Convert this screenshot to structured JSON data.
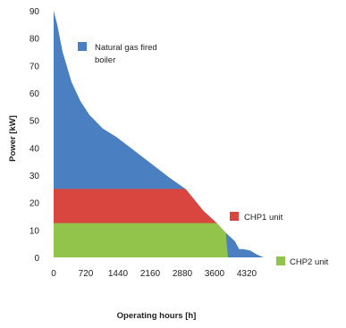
{
  "chart_data": {
    "type": "area",
    "xlabel": "Operating hours [h]",
    "ylabel": "Power [kW]",
    "xlim": [
      0,
      4800
    ],
    "ylim": [
      0,
      90
    ],
    "x_ticks": [
      "0",
      "720",
      "1440",
      "2160",
      "2880",
      "3600",
      "4320"
    ],
    "x_tick_values": [
      0,
      720,
      1440,
      2160,
      2880,
      3600,
      4320
    ],
    "y_ticks": [
      "0",
      "10",
      "20",
      "30",
      "40",
      "50",
      "60",
      "70",
      "80",
      "90"
    ],
    "y_tick_values": [
      0,
      10,
      20,
      30,
      40,
      50,
      60,
      70,
      80,
      90
    ],
    "grid": false,
    "series": [
      {
        "name": "CHP2 unit",
        "color": "#92c44c",
        "x": [
          0,
          3650,
          3850,
          3900,
          3950
        ],
        "y": [
          12.5,
          12.5,
          9,
          0,
          0
        ]
      },
      {
        "name": "CHP1 unit",
        "color": "#d9453f",
        "x": [
          0,
          2950,
          3100,
          3350,
          3650
        ],
        "y": [
          25,
          25,
          22,
          17,
          12.5
        ]
      },
      {
        "name": "Natural gas fired boiler",
        "color": "#4a7fc2",
        "x": [
          0,
          80,
          200,
          400,
          600,
          800,
          1100,
          1400,
          1800,
          2200,
          2600,
          2950,
          3100,
          3350,
          3650,
          3850,
          4050,
          4150,
          4250,
          4400,
          4550,
          4700
        ],
        "y": [
          90,
          85,
          75,
          64,
          57,
          52,
          47,
          44,
          39,
          34,
          29,
          25,
          22,
          17,
          12.5,
          9,
          6,
          3,
          3,
          2.5,
          1,
          0
        ]
      }
    ],
    "annotations": [
      {
        "series": "Natural gas fired boiler",
        "text_lines": [
          "Natural gas fired",
          "boiler"
        ],
        "color": "#4a7fc2"
      },
      {
        "series": "CHP1 unit",
        "text_lines": [
          "CHP1 unit"
        ],
        "color": "#d9453f"
      },
      {
        "series": "CHP2 unit",
        "text_lines": [
          "CHP2 unit"
        ],
        "color": "#92c44c"
      }
    ]
  }
}
